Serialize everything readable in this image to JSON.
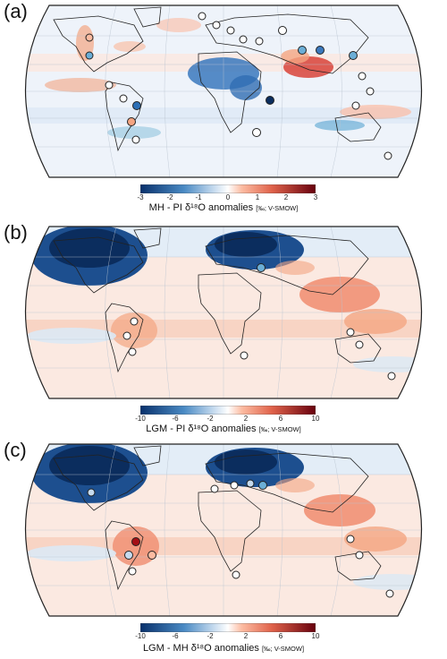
{
  "panels": [
    {
      "label": "(a)",
      "title_main": "MH - PI δ¹⁸O anomalies",
      "title_unit": "[‰; V-SMOW]",
      "ticks": [
        "-3",
        "-2",
        "-1",
        "0",
        "1",
        "2",
        "3"
      ],
      "range": [
        -3,
        3
      ]
    },
    {
      "label": "(b)",
      "title_main": "LGM - PI δ¹⁸O anomalies",
      "title_unit": "[‰; V-SMOW]",
      "ticks": [
        "-10",
        "-6",
        "-2",
        "2",
        "6",
        "10"
      ],
      "range": [
        -10,
        10
      ]
    },
    {
      "label": "(c)",
      "title_main": "LGM - MH δ¹⁸O anomalies",
      "title_unit": "[‰; V-SMOW]",
      "ticks": [
        "-10",
        "-6",
        "-2",
        "2",
        "6",
        "10"
      ],
      "range": [
        -10,
        10
      ]
    }
  ],
  "colors": {
    "strong_negative": "#08306b",
    "negative": "#4a8ac4",
    "light_negative": "#c6dbef",
    "neutral": "#ffffff",
    "light_positive": "#fcbba1",
    "positive": "#e0624a",
    "strong_positive": "#67000d"
  }
}
